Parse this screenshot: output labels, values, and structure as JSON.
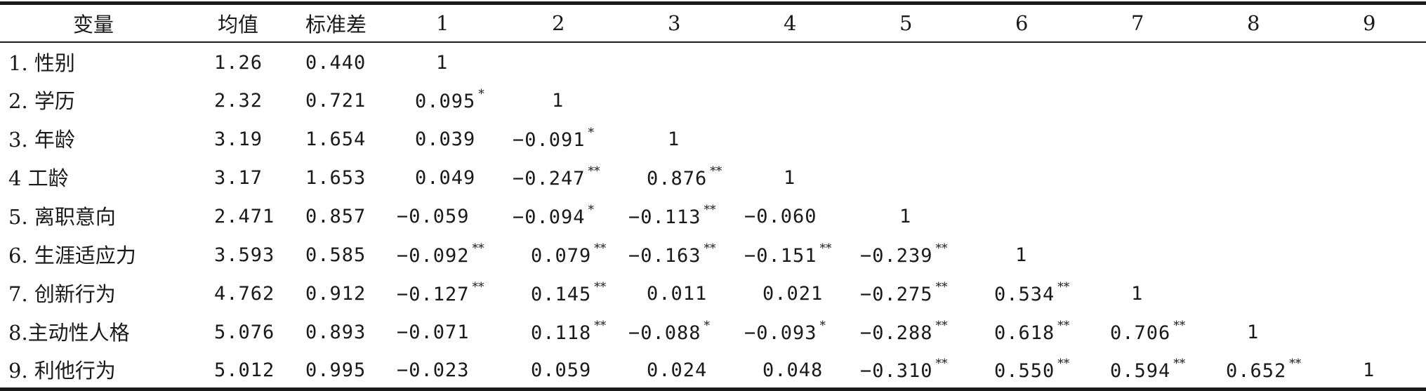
{
  "table": {
    "headers": [
      "变量",
      "均值",
      "标准差",
      "1",
      "2",
      "3",
      "4",
      "5",
      "6",
      "7",
      "8",
      "9"
    ],
    "rows": [
      {
        "variable": "1. 性别",
        "mean": "1.26",
        "sd": "0.440",
        "cells": [
          {
            "v": "1",
            "sig": ""
          },
          {
            "v": "",
            "sig": ""
          },
          {
            "v": "",
            "sig": ""
          },
          {
            "v": "",
            "sig": ""
          },
          {
            "v": "",
            "sig": ""
          },
          {
            "v": "",
            "sig": ""
          },
          {
            "v": "",
            "sig": ""
          },
          {
            "v": "",
            "sig": ""
          },
          {
            "v": "",
            "sig": ""
          }
        ]
      },
      {
        "variable": "2. 学历",
        "mean": "2.32",
        "sd": "0.721",
        "cells": [
          {
            "v": "0.095",
            "sig": "*"
          },
          {
            "v": "1",
            "sig": ""
          },
          {
            "v": "",
            "sig": ""
          },
          {
            "v": "",
            "sig": ""
          },
          {
            "v": "",
            "sig": ""
          },
          {
            "v": "",
            "sig": ""
          },
          {
            "v": "",
            "sig": ""
          },
          {
            "v": "",
            "sig": ""
          },
          {
            "v": "",
            "sig": ""
          }
        ]
      },
      {
        "variable": "3. 年龄",
        "mean": "3.19",
        "sd": "1.654",
        "cells": [
          {
            "v": "0.039",
            "sig": ""
          },
          {
            "v": "−0.091",
            "sig": "*"
          },
          {
            "v": "1",
            "sig": ""
          },
          {
            "v": "",
            "sig": ""
          },
          {
            "v": "",
            "sig": ""
          },
          {
            "v": "",
            "sig": ""
          },
          {
            "v": "",
            "sig": ""
          },
          {
            "v": "",
            "sig": ""
          },
          {
            "v": "",
            "sig": ""
          }
        ]
      },
      {
        "variable": "4 工龄",
        "mean": "3.17",
        "sd": "1.653",
        "cells": [
          {
            "v": "0.049",
            "sig": ""
          },
          {
            "v": "−0.247",
            "sig": "**"
          },
          {
            "v": "0.876",
            "sig": "**"
          },
          {
            "v": "1",
            "sig": ""
          },
          {
            "v": "",
            "sig": ""
          },
          {
            "v": "",
            "sig": ""
          },
          {
            "v": "",
            "sig": ""
          },
          {
            "v": "",
            "sig": ""
          },
          {
            "v": "",
            "sig": ""
          }
        ]
      },
      {
        "variable": "5. 离职意向",
        "mean": "2.471",
        "sd": "0.857",
        "cells": [
          {
            "v": "−0.059",
            "sig": ""
          },
          {
            "v": "−0.094",
            "sig": "*"
          },
          {
            "v": "−0.113",
            "sig": "**"
          },
          {
            "v": "−0.060",
            "sig": ""
          },
          {
            "v": "1",
            "sig": ""
          },
          {
            "v": "",
            "sig": ""
          },
          {
            "v": "",
            "sig": ""
          },
          {
            "v": "",
            "sig": ""
          },
          {
            "v": "",
            "sig": ""
          }
        ]
      },
      {
        "variable": "6. 生涯适应力",
        "mean": "3.593",
        "sd": "0.585",
        "cells": [
          {
            "v": "−0.092",
            "sig": "**"
          },
          {
            "v": "0.079",
            "sig": "**"
          },
          {
            "v": "−0.163",
            "sig": "**"
          },
          {
            "v": "−0.151",
            "sig": "**"
          },
          {
            "v": "−0.239",
            "sig": "**"
          },
          {
            "v": "1",
            "sig": ""
          },
          {
            "v": "",
            "sig": ""
          },
          {
            "v": "",
            "sig": ""
          },
          {
            "v": "",
            "sig": ""
          }
        ]
      },
      {
        "variable": "7. 创新行为",
        "mean": "4.762",
        "sd": "0.912",
        "cells": [
          {
            "v": "−0.127",
            "sig": "**"
          },
          {
            "v": "0.145",
            "sig": "**"
          },
          {
            "v": "0.011",
            "sig": ""
          },
          {
            "v": "0.021",
            "sig": ""
          },
          {
            "v": "−0.275",
            "sig": "**"
          },
          {
            "v": "0.534",
            "sig": "**"
          },
          {
            "v": "1",
            "sig": ""
          },
          {
            "v": "",
            "sig": ""
          },
          {
            "v": "",
            "sig": ""
          }
        ]
      },
      {
        "variable": "8.主动性人格",
        "mean": "5.076",
        "sd": "0.893",
        "cells": [
          {
            "v": "−0.071",
            "sig": ""
          },
          {
            "v": "0.118",
            "sig": "**"
          },
          {
            "v": "−0.088",
            "sig": "*"
          },
          {
            "v": "−0.093",
            "sig": "*"
          },
          {
            "v": "−0.288",
            "sig": "**"
          },
          {
            "v": "0.618",
            "sig": "**"
          },
          {
            "v": "0.706",
            "sig": "**"
          },
          {
            "v": "1",
            "sig": ""
          },
          {
            "v": "",
            "sig": ""
          }
        ]
      },
      {
        "variable": "9. 利他行为",
        "mean": "5.012",
        "sd": "0.995",
        "cells": [
          {
            "v": "−0.023",
            "sig": ""
          },
          {
            "v": "0.059",
            "sig": ""
          },
          {
            "v": "0.024",
            "sig": ""
          },
          {
            "v": "0.048",
            "sig": ""
          },
          {
            "v": "−0.310",
            "sig": "**"
          },
          {
            "v": "0.550",
            "sig": "**"
          },
          {
            "v": "0.594",
            "sig": "**"
          },
          {
            "v": "0.652",
            "sig": "**"
          },
          {
            "v": "1",
            "sig": ""
          }
        ]
      }
    ]
  }
}
